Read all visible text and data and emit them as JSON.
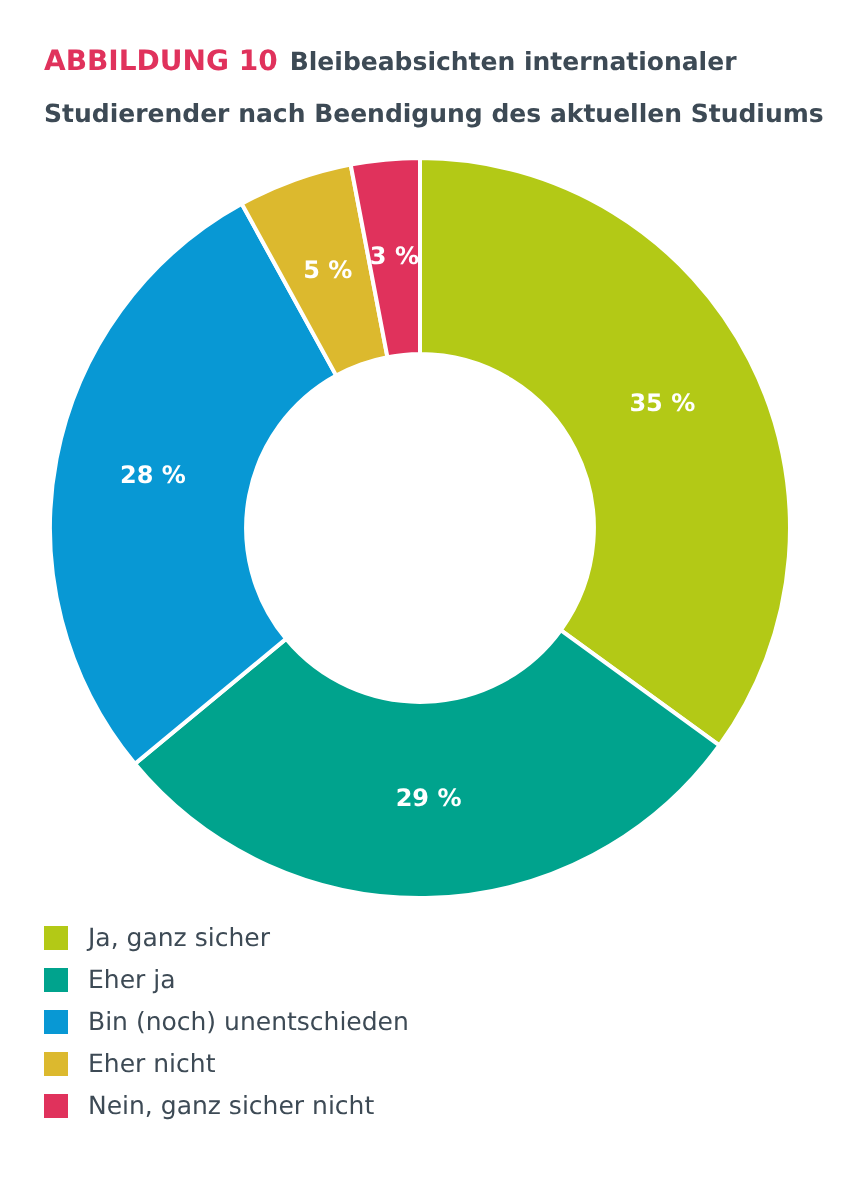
{
  "chart_data": {
    "type": "donut",
    "title": "ABBILDUNG 10",
    "subtitle": "Bleibeabsichten internationaler Studierender nach Beendigung des aktuellen Studiums",
    "categories": [
      "Ja, ganz sicher",
      "Eher ja",
      "Bin (noch) unentschieden",
      "Eher nicht",
      "Nein, ganz sicher nicht"
    ],
    "values": [
      35,
      29,
      28,
      5,
      3
    ],
    "value_labels": [
      "35 %",
      "29 %",
      "28 %",
      "5 %",
      "3 %"
    ],
    "colors": [
      "#b3c916",
      "#00a38d",
      "#0898d4",
      "#dcb92e",
      "#e0325c"
    ],
    "legend": "bottom left"
  }
}
